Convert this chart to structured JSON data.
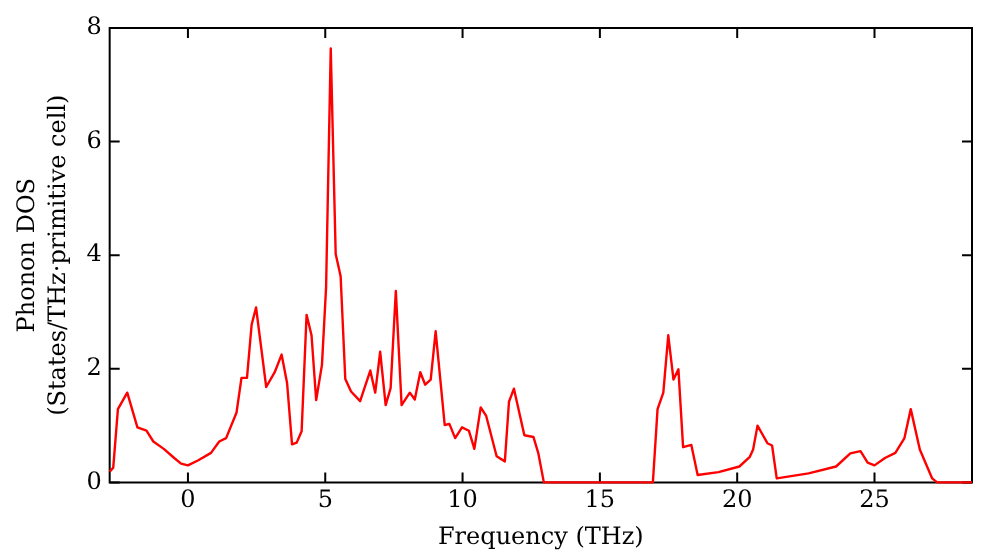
{
  "chart_data": {
    "type": "line",
    "xlabel": "Frequency (THz)",
    "ylabel": "Phonon DOS\n(States/THz·primitive cell)",
    "xlim": [
      -2.85,
      28.55
    ],
    "ylim": [
      0,
      8
    ],
    "xticks": [
      0,
      5,
      10,
      15,
      20,
      25
    ],
    "yticks": [
      0,
      2,
      4,
      6,
      8
    ],
    "grid": false,
    "legend": false,
    "marker": "none",
    "line_style": "solid",
    "series": [
      {
        "color": "#ff0000",
        "x": [
          -2.85,
          -2.72,
          -2.55,
          -2.21,
          -1.84,
          -1.51,
          -1.26,
          -0.88,
          -0.5,
          -0.25,
          0,
          0.38,
          0.84,
          1.14,
          1.39,
          1.77,
          1.95,
          2.15,
          2.32,
          2.48,
          2.85,
          3.16,
          3.41,
          3.61,
          3.79,
          3.96,
          4.14,
          4.32,
          4.5,
          4.67,
          4.88,
          5.03,
          5.2,
          5.38,
          5.56,
          5.73,
          5.94,
          6.27,
          6.64,
          6.82,
          7.0,
          7.2,
          7.38,
          7.57,
          7.78,
          8.08,
          8.26,
          8.46,
          8.64,
          8.84,
          9.02,
          9.35,
          9.52,
          9.73,
          9.98,
          10.23,
          10.43,
          10.66,
          10.86,
          11.24,
          11.54,
          11.69,
          11.87,
          12.25,
          12.58,
          12.76,
          12.96,
          16.93,
          17.1,
          17.31,
          17.49,
          17.68,
          17.86,
          18.03,
          18.33,
          18.56,
          19.32,
          20.08,
          20.46,
          20.58,
          20.74,
          21.1,
          21.27,
          21.44,
          22.6,
          23.6,
          24.12,
          24.49,
          24.75,
          25.0,
          25.38,
          25.76,
          26.09,
          26.32,
          26.65,
          27.1,
          27.28,
          28.55
        ],
        "values": [
          0.19,
          0.26,
          1.29,
          1.58,
          0.97,
          0.91,
          0.72,
          0.59,
          0.43,
          0.33,
          0.3,
          0.39,
          0.52,
          0.72,
          0.78,
          1.23,
          1.84,
          1.84,
          2.78,
          3.08,
          1.68,
          1.94,
          2.25,
          1.75,
          0.67,
          0.7,
          0.9,
          2.95,
          2.59,
          1.45,
          2.07,
          3.43,
          7.64,
          4.02,
          3.63,
          1.82,
          1.6,
          1.43,
          1.97,
          1.58,
          2.3,
          1.36,
          1.66,
          3.37,
          1.36,
          1.58,
          1.46,
          1.94,
          1.72,
          1.81,
          2.66,
          1.01,
          1.03,
          0.78,
          0.97,
          0.91,
          0.59,
          1.32,
          1.17,
          0.46,
          0.37,
          1.42,
          1.65,
          0.83,
          0.8,
          0.51,
          0,
          0,
          1.29,
          1.58,
          2.59,
          1.81,
          1.99,
          0.62,
          0.66,
          0.13,
          0.18,
          0.28,
          0.45,
          0.58,
          1.0,
          0.69,
          0.65,
          0.07,
          0.16,
          0.28,
          0.51,
          0.55,
          0.35,
          0.3,
          0.43,
          0.52,
          0.78,
          1.29,
          0.58,
          0.07,
          0,
          0
        ]
      }
    ]
  }
}
